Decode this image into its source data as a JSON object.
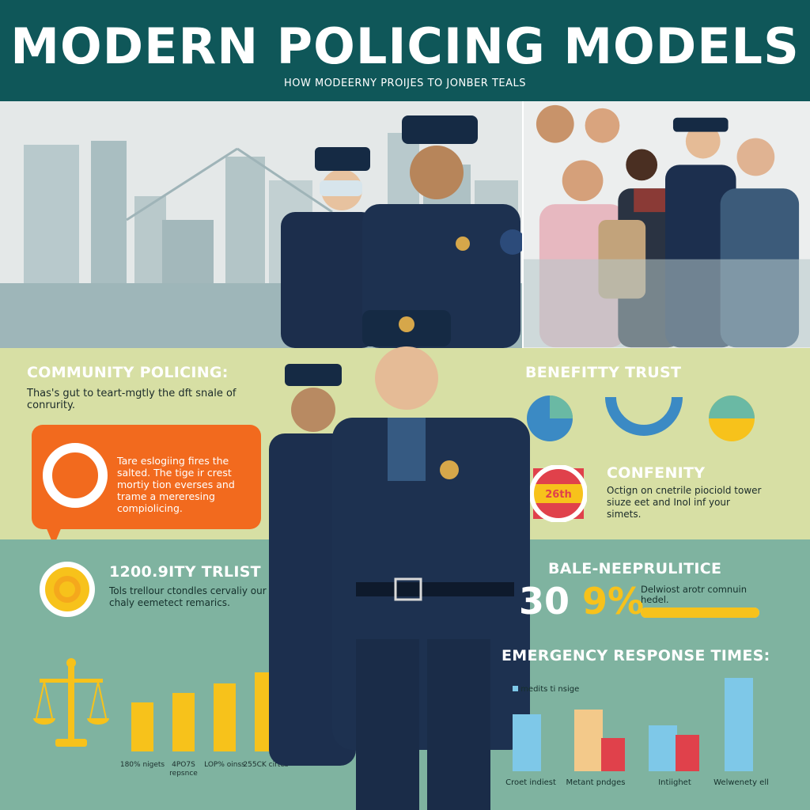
{
  "header": {
    "title": "MODERN POLICING MODELS",
    "subtitle": "HOW MODEERNY PROIJES TO JONBER TEALS"
  },
  "community": {
    "heading": "COMMUNITY POLICING:",
    "text": "Thas's gut to teart-mgtly the dft snale of conrurity.",
    "callout_text": "Tare eslogiing fires the salted. The tige ir crest mortiy tion everses and trame a mereresing compiolicing."
  },
  "trust": {
    "heading": "1200.9ITY TRLIST",
    "text": "Tols trellour ctondles cervaliy our chaly eemetect remarics."
  },
  "benefits": {
    "heading": "BENEFITTY TRUST"
  },
  "confenity": {
    "heading": "CONFENITY",
    "badge": "26th",
    "text": "Octign on cnetrile piociold tower siuze eet and Inol inf your simets."
  },
  "bale": {
    "heading": "BALE-NEEPRULITICE",
    "num_a": "30",
    "num_b": "9%",
    "text": "Delwiost arotr comnuin hedel.",
    "bar_fill_fraction": 1.0
  },
  "emergency": {
    "heading": "EMERGENCY RESPONSE TIMES:",
    "legend": "medits ti nsige",
    "groups": [
      {
        "label": "Croet indiest",
        "values": [
          72,
          0
        ]
      },
      {
        "label": "Metant pndges",
        "values": [
          78,
          42
        ]
      },
      {
        "label": "Intiighet",
        "values": [
          58,
          46
        ]
      },
      {
        "label": "Welwenety ell",
        "values": [
          118,
          0
        ]
      }
    ]
  },
  "left_bars": {
    "values": [
      62,
      74,
      86,
      100
    ],
    "labels": [
      "180% nigets",
      "4PO7S repsnce",
      "LOP% oinss",
      "255CK cirtes"
    ]
  },
  "colors": {
    "teal_dark": "#0f5759",
    "orange": "#f26a1e",
    "yellow": "#f7c21b",
    "blue": "#4a90c4",
    "light_blue": "#7ec8e8",
    "sage": "#d7dfa4",
    "green": "#7fb3a0",
    "red": "#e0414b",
    "tan": "#f3c98a"
  },
  "icons": {
    "warning": "warning-icon",
    "sun": "sun-badge-icon",
    "scale": "scales-of-justice-icon"
  }
}
